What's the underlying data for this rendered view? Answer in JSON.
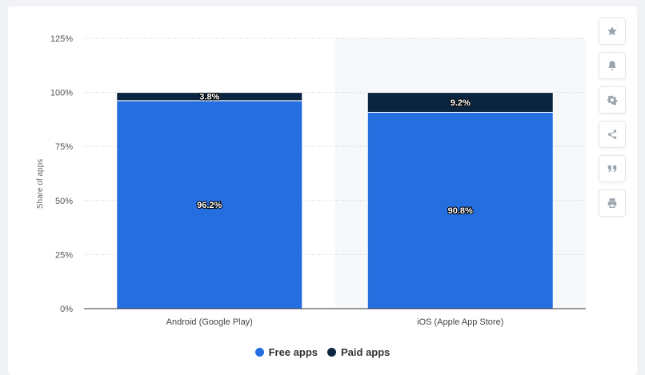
{
  "chart_data": {
    "type": "bar",
    "stacked": true,
    "categories": [
      "Android (Google Play)",
      "iOS (Apple App Store)"
    ],
    "series": [
      {
        "name": "Free apps",
        "values": [
          96.2,
          90.8
        ],
        "color": "#246ee0"
      },
      {
        "name": "Paid apps",
        "values": [
          3.8,
          9.2
        ],
        "color": "#0b2540"
      }
    ],
    "value_labels": [
      [
        "96.2%",
        "90.8%"
      ],
      [
        "3.8%",
        "9.2%"
      ]
    ],
    "ylabel": "Share of apps",
    "xlabel": "",
    "ylim": [
      0,
      125
    ],
    "yticks": [
      0,
      25,
      50,
      75,
      100,
      125
    ],
    "ytick_labels": [
      "0%",
      "25%",
      "50%",
      "75%",
      "100%",
      "125%"
    ],
    "grid": "dotted horizontal",
    "legend_position": "bottom"
  },
  "toolbar": {
    "buttons": [
      "star-icon",
      "bell-icon",
      "gear-icon",
      "share-icon",
      "quote-icon",
      "print-icon"
    ]
  }
}
